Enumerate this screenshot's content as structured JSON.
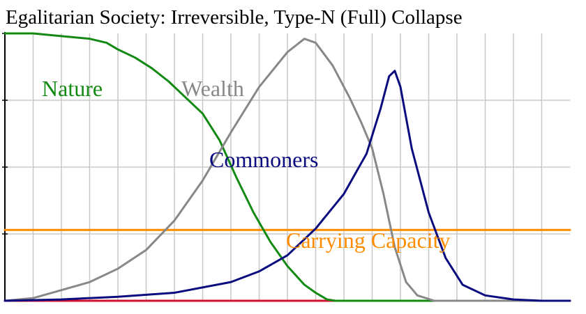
{
  "chart_data": {
    "type": "line",
    "title": "Egalitarian Society: Irreversible, Type-N (Full) Collapse",
    "xlabel": "",
    "ylabel": "",
    "xlim": [
      0,
      1000
    ],
    "ylim": [
      0,
      100
    ],
    "grid": true,
    "x_gridlines": 20,
    "y_gridlines": 4,
    "legend": "inline labels",
    "colors": {
      "nature": "#138A13",
      "wealth": "#888888",
      "commoners": "#0B0B80",
      "carrying_capacity": "#FF8C00",
      "elites": "#D01030",
      "grid": "#C8C8C8",
      "axis": "#000000"
    },
    "series": [
      {
        "name": "Nature",
        "key": "nature",
        "points": [
          [
            0,
            100
          ],
          [
            50,
            100
          ],
          [
            100,
            99
          ],
          [
            150,
            98
          ],
          [
            180,
            96.5
          ],
          [
            200,
            94
          ],
          [
            230,
            91
          ],
          [
            260,
            87
          ],
          [
            290,
            82
          ],
          [
            320,
            76
          ],
          [
            350,
            70
          ],
          [
            380,
            60
          ],
          [
            410,
            46
          ],
          [
            440,
            33
          ],
          [
            470,
            22
          ],
          [
            500,
            13
          ],
          [
            530,
            6
          ],
          [
            550,
            3
          ],
          [
            570,
            0.5
          ],
          [
            585,
            0
          ],
          [
            650,
            0
          ],
          [
            1000,
            0
          ]
        ]
      },
      {
        "name": "Wealth",
        "key": "wealth",
        "points": [
          [
            0,
            0
          ],
          [
            50,
            1
          ],
          [
            100,
            4
          ],
          [
            150,
            7
          ],
          [
            200,
            12
          ],
          [
            250,
            19
          ],
          [
            300,
            30
          ],
          [
            350,
            45
          ],
          [
            400,
            63
          ],
          [
            450,
            80
          ],
          [
            500,
            93
          ],
          [
            530,
            98
          ],
          [
            550,
            96.5
          ],
          [
            580,
            88
          ],
          [
            610,
            76
          ],
          [
            630,
            67
          ],
          [
            650,
            57
          ],
          [
            670,
            40
          ],
          [
            690,
            20
          ],
          [
            710,
            7
          ],
          [
            730,
            2
          ],
          [
            760,
            0
          ],
          [
            1000,
            0
          ]
        ]
      },
      {
        "name": "Commoners",
        "key": "commoners",
        "points": [
          [
            0,
            0
          ],
          [
            100,
            0.5
          ],
          [
            200,
            1.5
          ],
          [
            300,
            3
          ],
          [
            400,
            7
          ],
          [
            450,
            11
          ],
          [
            500,
            17
          ],
          [
            550,
            27
          ],
          [
            600,
            40
          ],
          [
            640,
            55
          ],
          [
            665,
            72
          ],
          [
            680,
            84
          ],
          [
            690,
            86
          ],
          [
            700,
            80
          ],
          [
            720,
            57
          ],
          [
            750,
            33
          ],
          [
            780,
            16
          ],
          [
            810,
            6
          ],
          [
            850,
            2
          ],
          [
            900,
            0.5
          ],
          [
            950,
            0
          ],
          [
            1000,
            0
          ]
        ]
      },
      {
        "name": "Carrying Capacity",
        "key": "carrying_capacity",
        "points": [
          [
            0,
            26.5
          ],
          [
            1000,
            26.5
          ]
        ]
      },
      {
        "name": "",
        "key": "elites",
        "points": [
          [
            0,
            0
          ],
          [
            1000,
            0
          ]
        ]
      }
    ]
  }
}
